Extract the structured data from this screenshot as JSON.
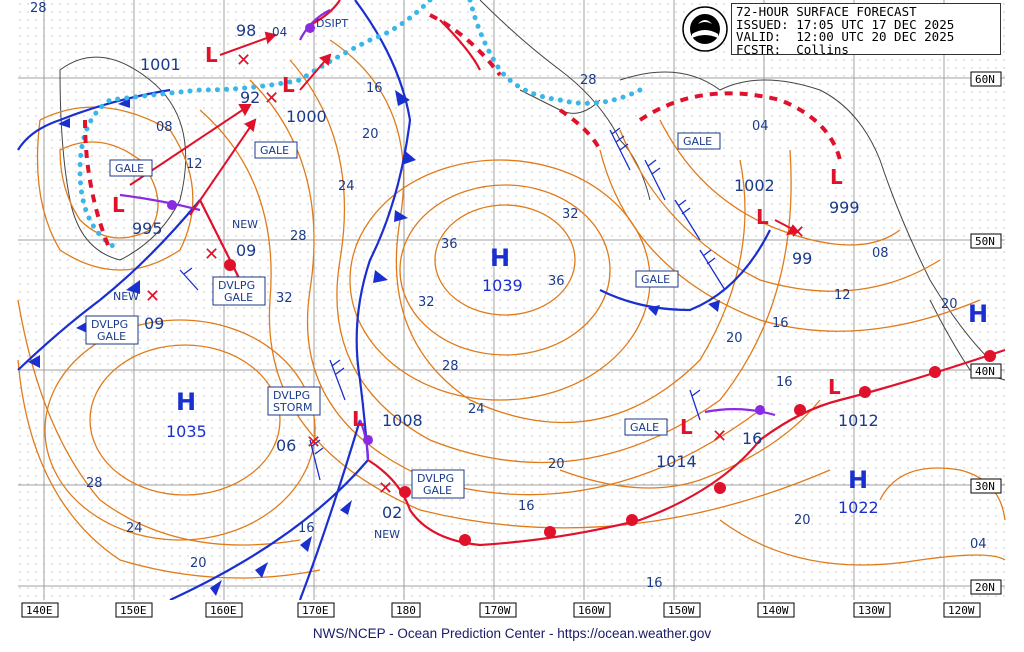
{
  "header": {
    "line1": "72-HOUR SURFACE FORECAST",
    "line2": "ISSUED: 17:05 UTC 17 DEC 2025",
    "line3": "VALID:  12:00 UTC 20 DEC 2025",
    "line4": "FCSTR:  Collins"
  },
  "logo": "noaa-logo",
  "footer": "NWS/NCEP - Ocean Prediction Center - https://ocean.weather.gov",
  "lon_labels": [
    "140E",
    "150E",
    "160E",
    "170E",
    "180",
    "170W",
    "160W",
    "150W",
    "140W",
    "130W",
    "120W"
  ],
  "lat_labels": [
    "60N",
    "50N",
    "40N",
    "30N",
    "20N"
  ],
  "pressure_centers": {
    "high_1039": {
      "letter": "H",
      "value": "1039"
    },
    "high_1035": {
      "letter": "H",
      "value": "1035"
    },
    "high_1022": {
      "letter": "H",
      "value": "1022"
    },
    "high_coast": {
      "letter": "H"
    },
    "low_995": {
      "value": "995"
    },
    "low_1001": {
      "value": "1001"
    },
    "low_98": {
      "value": "98"
    },
    "low_92": {
      "value": "92"
    },
    "low_1000": {
      "value": "1000"
    },
    "low_1002": {
      "value": "1002"
    },
    "low_999": {
      "value": "999"
    },
    "low_99": {
      "value": "99"
    },
    "low_1008": {
      "value": "1008"
    },
    "low_1014": {
      "value": "1014"
    },
    "low_16": {
      "value": "16"
    },
    "low_1012": {
      "value": "1012"
    },
    "new_09_a": {
      "value": "09"
    },
    "new_09_b": {
      "value": "09"
    },
    "low_06": {
      "value": "06"
    },
    "low_02": {
      "value": "02"
    },
    "low_04": {
      "value": "04"
    }
  },
  "labels": {
    "dsipt": "DSIPT",
    "new": "NEW",
    "gale": "GALE",
    "dvlpg": "DVLPG",
    "storm": "STORM"
  },
  "isobar_labels": [
    "28",
    "08",
    "12",
    "16",
    "20",
    "24",
    "28",
    "32",
    "36",
    "36",
    "32",
    "28",
    "24",
    "20",
    "16",
    "32",
    "28",
    "24",
    "20",
    "16",
    "16",
    "20",
    "16",
    "20",
    "16",
    "12",
    "08",
    "04",
    "20",
    "28",
    "04"
  ]
}
